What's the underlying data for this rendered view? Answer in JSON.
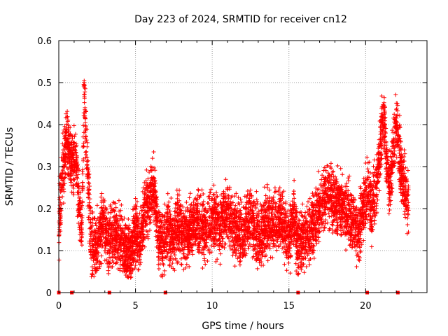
{
  "chart_data": {
    "type": "scatter",
    "title": "Day 223 of 2024, SRMTID for receiver cn12",
    "xlabel": "GPS time / hours",
    "ylabel": "SRMTID / TECUs",
    "xlim": [
      0,
      24
    ],
    "ylim": [
      0,
      0.6
    ],
    "xticks": [
      0,
      5,
      10,
      15,
      20
    ],
    "yticks": [
      0,
      0.1,
      0.2,
      0.3,
      0.4,
      0.5,
      0.6
    ],
    "xtick_labels": [
      "0",
      "5",
      "10",
      "15",
      "20"
    ],
    "ytick_labels": [
      "0",
      "0.1",
      "0.2",
      "0.3",
      "0.4",
      "0.5",
      "0.6"
    ],
    "grid": true,
    "marker": "+",
    "color": "#ff0000",
    "series": [
      {
        "name": "SRMTID",
        "trend": {
          "x": [
            0.0,
            0.1,
            0.3,
            0.5,
            0.7,
            0.9,
            1.1,
            1.3,
            1.5,
            1.65,
            1.8,
            1.95,
            2.1,
            2.3,
            2.6,
            2.9,
            3.2,
            3.5,
            3.8,
            4.1,
            4.4,
            4.7,
            5.0,
            5.3,
            5.6,
            5.9,
            6.2,
            6.5,
            6.8,
            7.1,
            7.4,
            7.7,
            8.0,
            8.5,
            9.0,
            9.5,
            10.0,
            10.5,
            11.0,
            11.5,
            12.0,
            12.5,
            13.0,
            13.5,
            14.0,
            14.5,
            15.0,
            15.3,
            15.6,
            16.0,
            16.5,
            17.0,
            17.5,
            18.0,
            18.5,
            19.0,
            19.5,
            19.8,
            20.1,
            20.4,
            20.7,
            21.0,
            21.2,
            21.4,
            21.6,
            21.8,
            22.0,
            22.2,
            22.4,
            22.6,
            22.8
          ],
          "y": [
            0.13,
            0.22,
            0.3,
            0.35,
            0.33,
            0.3,
            0.34,
            0.2,
            0.15,
            0.48,
            0.35,
            0.24,
            0.12,
            0.1,
            0.13,
            0.17,
            0.12,
            0.14,
            0.13,
            0.12,
            0.1,
            0.09,
            0.15,
            0.12,
            0.19,
            0.22,
            0.25,
            0.13,
            0.11,
            0.16,
            0.12,
            0.16,
            0.14,
            0.15,
            0.17,
            0.15,
            0.18,
            0.16,
            0.19,
            0.15,
            0.14,
            0.18,
            0.13,
            0.17,
            0.16,
            0.18,
            0.12,
            0.19,
            0.11,
            0.13,
            0.15,
            0.2,
            0.24,
            0.21,
            0.2,
            0.18,
            0.15,
            0.18,
            0.26,
            0.2,
            0.25,
            0.36,
            0.42,
            0.3,
            0.25,
            0.33,
            0.4,
            0.34,
            0.27,
            0.24,
            0.22
          ],
          "spread": 0.045,
          "samples_per_hour": 260
        }
      }
    ],
    "gap_markers_x": [
      0.0,
      0.85,
      3.3,
      6.95,
      15.6,
      20.1,
      22.1
    ]
  }
}
